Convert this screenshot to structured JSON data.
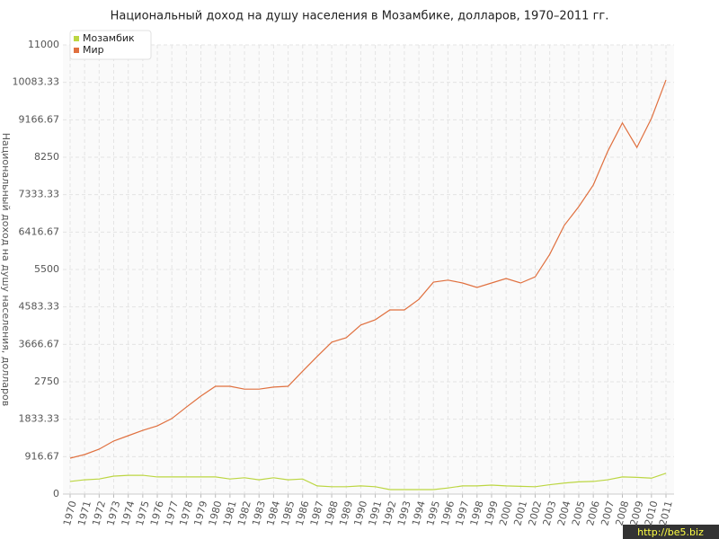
{
  "chart_data": {
    "type": "line",
    "title": "Национальный доход на душу населения в Мозамбике, долларов, 1970–2011 гг.",
    "y_label": "Национальный доход на душу населения, долларов",
    "watermark": "http://be5.biz",
    "x": [
      1970,
      1971,
      1972,
      1973,
      1974,
      1975,
      1976,
      1977,
      1978,
      1979,
      1980,
      1981,
      1982,
      1983,
      1984,
      1985,
      1986,
      1987,
      1988,
      1989,
      1990,
      1991,
      1992,
      1993,
      1994,
      1995,
      1996,
      1997,
      1998,
      1999,
      2000,
      2001,
      2002,
      2003,
      2004,
      2005,
      2006,
      2007,
      2008,
      2009,
      2010,
      2011
    ],
    "xlim": [
      1970,
      2011
    ],
    "series": [
      {
        "name": "Мозамбик",
        "color": "#bcd642",
        "values": [
          310,
          350,
          370,
          440,
          460,
          460,
          420,
          420,
          420,
          420,
          420,
          370,
          400,
          350,
          400,
          350,
          370,
          200,
          180,
          180,
          200,
          180,
          110,
          110,
          110,
          110,
          150,
          200,
          200,
          220,
          200,
          190,
          180,
          230,
          270,
          300,
          310,
          350,
          420,
          410,
          390,
          510
        ]
      },
      {
        "name": "Мир",
        "color": "#e0703f",
        "values": [
          880,
          968,
          1100,
          1300,
          1430,
          1560,
          1670,
          1850,
          2130,
          2400,
          2640,
          2640,
          2570,
          2570,
          2620,
          2640,
          3010,
          3370,
          3720,
          3830,
          4140,
          4270,
          4510,
          4510,
          4770,
          5190,
          5240,
          5170,
          5060,
          5170,
          5280,
          5170,
          5320,
          5870,
          6580,
          7040,
          7570,
          8400,
          9090,
          8490,
          9200,
          10140
        ]
      }
    ],
    "ylim": [
      0,
      11000
    ],
    "yticks": [
      0,
      916.67,
      1833.33,
      2750,
      3666.67,
      4583.33,
      5500,
      6416.67,
      7333.33,
      8250,
      9166.67,
      10083.33,
      11000
    ],
    "grid": true,
    "legend": "top-left"
  }
}
